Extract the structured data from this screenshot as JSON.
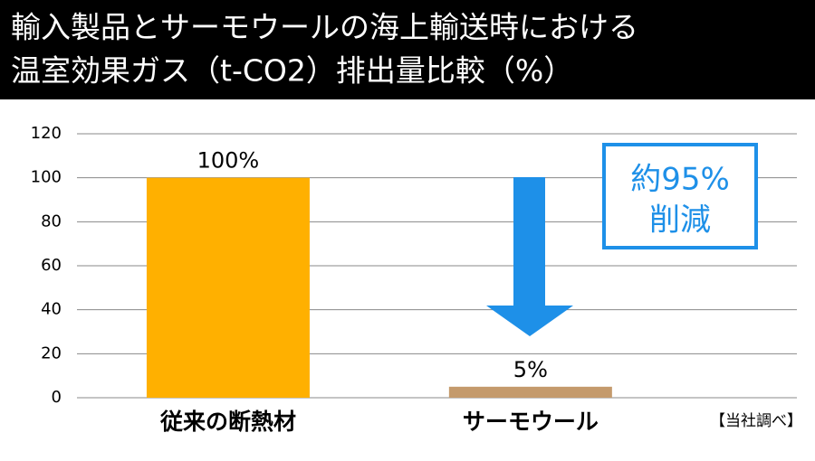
{
  "chart_data": {
    "type": "bar",
    "title_lines": [
      "輸入製品とサーモウールの海上輸送時における",
      "温室効果ガス（t-CO2）排出量比較（%）"
    ],
    "categories": [
      "従来の断熱材",
      "サーモウール"
    ],
    "values": [
      100,
      5
    ],
    "value_labels": [
      "100%",
      "5%"
    ],
    "colors": [
      "#ffb000",
      "#c49a6c"
    ],
    "ylim": [
      0,
      120
    ],
    "yticks": [
      0,
      20,
      40,
      60,
      80,
      100,
      120
    ],
    "grid": true,
    "annotation_lines": [
      "約95%",
      "削減"
    ],
    "source": "【当社調べ】"
  }
}
